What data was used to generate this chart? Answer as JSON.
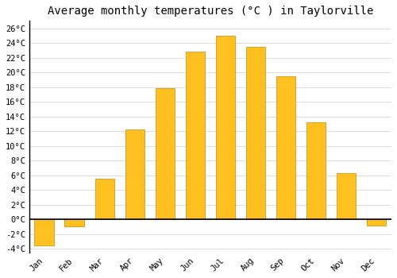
{
  "title": "Average monthly temperatures (°C ) in Taylorville",
  "months": [
    "Jan",
    "Feb",
    "Mar",
    "Apr",
    "May",
    "Jun",
    "Jul",
    "Aug",
    "Sep",
    "Oct",
    "Nov",
    "Dec"
  ],
  "values": [
    -3.5,
    -1.0,
    5.5,
    12.2,
    17.8,
    22.8,
    25.0,
    23.5,
    19.5,
    13.2,
    6.3,
    -0.8
  ],
  "bar_color": "#FFC020",
  "bar_edge_color": "#CC8800",
  "ylim": [
    -4.5,
    27
  ],
  "yticks": [
    -4,
    -2,
    0,
    2,
    4,
    6,
    8,
    10,
    12,
    14,
    16,
    18,
    20,
    22,
    24,
    26
  ],
  "ytick_labels": [
    "-4°C",
    "-2°C",
    "0°C",
    "2°C",
    "4°C",
    "6°C",
    "8°C",
    "10°C",
    "12°C",
    "14°C",
    "16°C",
    "18°C",
    "20°C",
    "22°C",
    "24°C",
    "26°C"
  ],
  "background_color": "#FFFFFF",
  "grid_color": "#DDDDDD",
  "title_fontsize": 10,
  "tick_fontsize": 7.5,
  "font_family": "monospace",
  "bar_width": 0.65
}
